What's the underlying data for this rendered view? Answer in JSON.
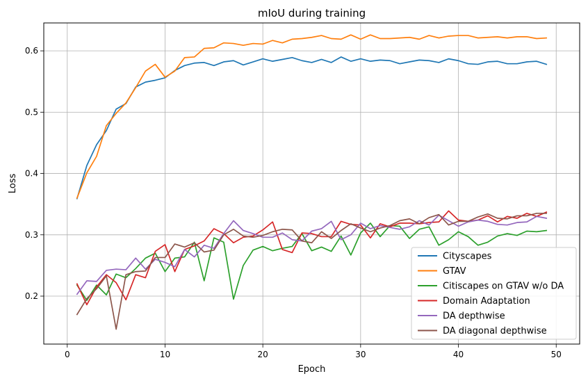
{
  "chart_data": {
    "type": "line",
    "title": "mIoU during training",
    "xlabel": "Epoch",
    "ylabel": "Loss",
    "xlim": [
      -2.4,
      52.4
    ],
    "ylim": [
      0.1218,
      0.6455
    ],
    "xticks": [
      0,
      10,
      20,
      30,
      40,
      50
    ],
    "xtick_labels": [
      "0",
      "10",
      "20",
      "30",
      "40",
      "50"
    ],
    "yticks": [
      0.2,
      0.3,
      0.4,
      0.5,
      0.6
    ],
    "ytick_labels": [
      "0.2",
      "0.3",
      "0.4",
      "0.5",
      "0.6"
    ],
    "grid": true,
    "legend_position": "lower-right",
    "x": [
      1,
      2,
      3,
      4,
      5,
      6,
      7,
      8,
      9,
      10,
      11,
      12,
      13,
      14,
      15,
      16,
      17,
      18,
      19,
      20,
      21,
      22,
      23,
      24,
      25,
      26,
      27,
      28,
      29,
      30,
      31,
      32,
      33,
      34,
      35,
      36,
      37,
      38,
      39,
      40,
      41,
      42,
      43,
      44,
      45,
      46,
      47,
      48,
      49
    ],
    "series": [
      {
        "name": "Cityscapes",
        "color": "#1f77b4",
        "values": [
          0.359,
          0.413,
          0.447,
          0.47,
          0.505,
          0.514,
          0.541,
          0.549,
          0.552,
          0.556,
          0.568,
          0.576,
          0.58,
          0.581,
          0.576,
          0.582,
          0.584,
          0.577,
          0.582,
          0.587,
          0.583,
          0.586,
          0.589,
          0.584,
          0.581,
          0.586,
          0.581,
          0.59,
          0.583,
          0.587,
          0.583,
          0.585,
          0.584,
          0.579,
          0.582,
          0.585,
          0.584,
          0.581,
          0.587,
          0.584,
          0.579,
          0.578,
          0.582,
          0.583,
          0.579,
          0.579,
          0.582,
          0.583,
          0.578
        ]
      },
      {
        "name": "GTAV",
        "color": "#ff7f0e",
        "values": [
          0.36,
          0.401,
          0.428,
          0.478,
          0.498,
          0.515,
          0.54,
          0.567,
          0.578,
          0.557,
          0.567,
          0.589,
          0.59,
          0.604,
          0.605,
          0.613,
          0.612,
          0.609,
          0.612,
          0.611,
          0.617,
          0.613,
          0.619,
          0.62,
          0.622,
          0.625,
          0.62,
          0.619,
          0.626,
          0.619,
          0.626,
          0.62,
          0.62,
          0.621,
          0.622,
          0.619,
          0.625,
          0.621,
          0.624,
          0.625,
          0.625,
          0.621,
          0.622,
          0.623,
          0.621,
          0.623,
          0.623,
          0.62,
          0.621
        ]
      },
      {
        "name": "Citiscapes on GTAV w/o DA",
        "color": "#2ca02c",
        "values": [
          0.218,
          0.193,
          0.218,
          0.202,
          0.236,
          0.23,
          0.245,
          0.262,
          0.27,
          0.24,
          0.262,
          0.264,
          0.288,
          0.225,
          0.295,
          0.288,
          0.195,
          0.25,
          0.275,
          0.281,
          0.274,
          0.278,
          0.281,
          0.302,
          0.274,
          0.28,
          0.273,
          0.298,
          0.267,
          0.303,
          0.319,
          0.297,
          0.315,
          0.314,
          0.294,
          0.309,
          0.313,
          0.283,
          0.292,
          0.305,
          0.297,
          0.283,
          0.288,
          0.298,
          0.302,
          0.299,
          0.306,
          0.305,
          0.307
        ]
      },
      {
        "name": "Domain Adaptation",
        "color": "#d62728",
        "values": [
          0.22,
          0.186,
          0.215,
          0.235,
          0.222,
          0.194,
          0.235,
          0.23,
          0.273,
          0.284,
          0.24,
          0.276,
          0.282,
          0.29,
          0.31,
          0.302,
          0.287,
          0.296,
          0.298,
          0.308,
          0.321,
          0.276,
          0.271,
          0.303,
          0.302,
          0.297,
          0.297,
          0.322,
          0.317,
          0.316,
          0.295,
          0.318,
          0.313,
          0.319,
          0.319,
          0.318,
          0.32,
          0.321,
          0.339,
          0.324,
          0.322,
          0.324,
          0.331,
          0.321,
          0.33,
          0.327,
          0.335,
          0.33,
          0.337
        ]
      },
      {
        "name": "DA depthwise",
        "color": "#9467bd",
        "values": [
          0.203,
          0.225,
          0.224,
          0.242,
          0.244,
          0.243,
          0.262,
          0.244,
          0.26,
          0.255,
          0.248,
          0.276,
          0.264,
          0.283,
          0.278,
          0.302,
          0.323,
          0.307,
          0.302,
          0.296,
          0.296,
          0.303,
          0.292,
          0.29,
          0.306,
          0.31,
          0.322,
          0.292,
          0.3,
          0.319,
          0.31,
          0.315,
          0.312,
          0.309,
          0.313,
          0.323,
          0.316,
          0.332,
          0.323,
          0.314,
          0.321,
          0.324,
          0.322,
          0.317,
          0.316,
          0.32,
          0.321,
          0.33,
          0.327
        ]
      },
      {
        "name": "DA diagonal depthwise",
        "color": "#8c564b",
        "values": [
          0.17,
          0.196,
          0.212,
          0.233,
          0.146,
          0.235,
          0.24,
          0.241,
          0.263,
          0.263,
          0.285,
          0.28,
          0.287,
          0.272,
          0.275,
          0.3,
          0.309,
          0.298,
          0.296,
          0.299,
          0.305,
          0.309,
          0.308,
          0.29,
          0.287,
          0.305,
          0.294,
          0.307,
          0.318,
          0.311,
          0.305,
          0.311,
          0.315,
          0.323,
          0.326,
          0.318,
          0.328,
          0.333,
          0.316,
          0.322,
          0.322,
          0.329,
          0.334,
          0.327,
          0.326,
          0.331,
          0.331,
          0.335,
          0.335
        ]
      }
    ]
  }
}
